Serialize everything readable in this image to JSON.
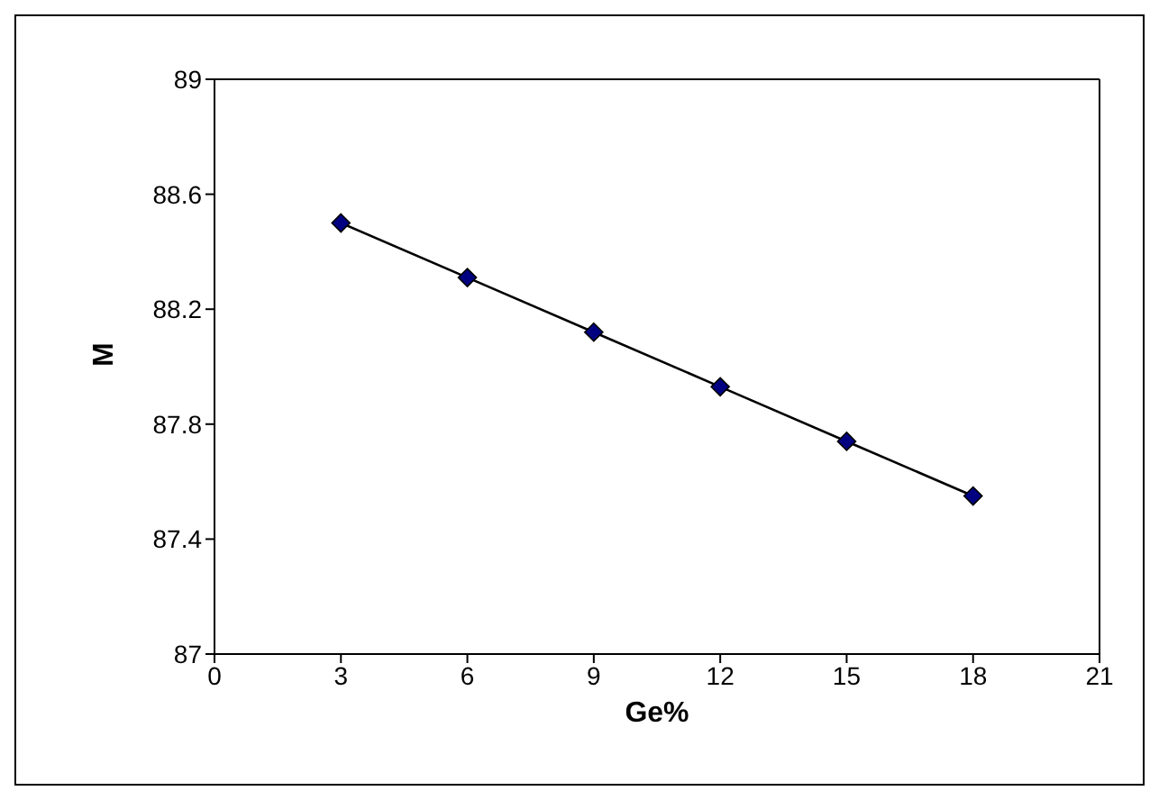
{
  "chart_data": {
    "type": "line",
    "xlabel": "Ge%",
    "ylabel": "M",
    "x": [
      3,
      6,
      9,
      12,
      15,
      18
    ],
    "series": [
      {
        "color": "#000080",
        "values": [
          88.5,
          88.31,
          88.12,
          87.93,
          87.74,
          87.55
        ]
      }
    ],
    "xlim": [
      0,
      21
    ],
    "xticks": [
      0,
      3,
      6,
      9,
      12,
      15,
      18,
      21
    ],
    "ylim": [
      87,
      89
    ],
    "yticks": [
      87,
      87.4,
      87.8,
      88.2,
      88.6,
      89
    ],
    "marker": "diamond",
    "line_style": "solid"
  }
}
